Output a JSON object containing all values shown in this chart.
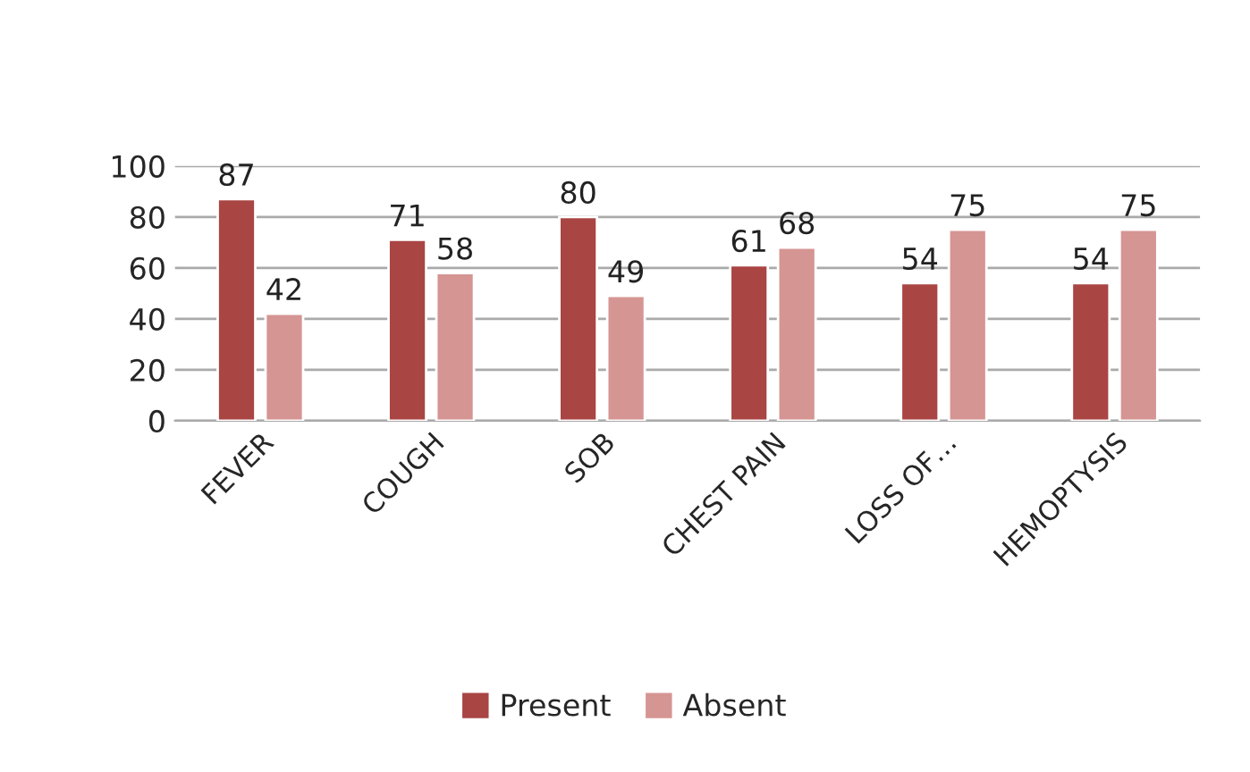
{
  "chart_data": {
    "type": "bar",
    "categories": [
      "FEVER",
      "COUGH",
      "SOB",
      "CHEST PAIN",
      "LOSS OF…",
      "HEMOPTYSIS"
    ],
    "series": [
      {
        "name": "Present",
        "color": "#a94543",
        "values": [
          87,
          71,
          80,
          61,
          54,
          54
        ]
      },
      {
        "name": "Absent",
        "color": "#d59593",
        "values": [
          42,
          58,
          49,
          68,
          75,
          75
        ]
      }
    ],
    "ylim": [
      0,
      100
    ],
    "yticks": [
      0,
      20,
      40,
      60,
      80,
      100
    ],
    "grid": "y",
    "legend": "bottom",
    "data_labels": true
  }
}
